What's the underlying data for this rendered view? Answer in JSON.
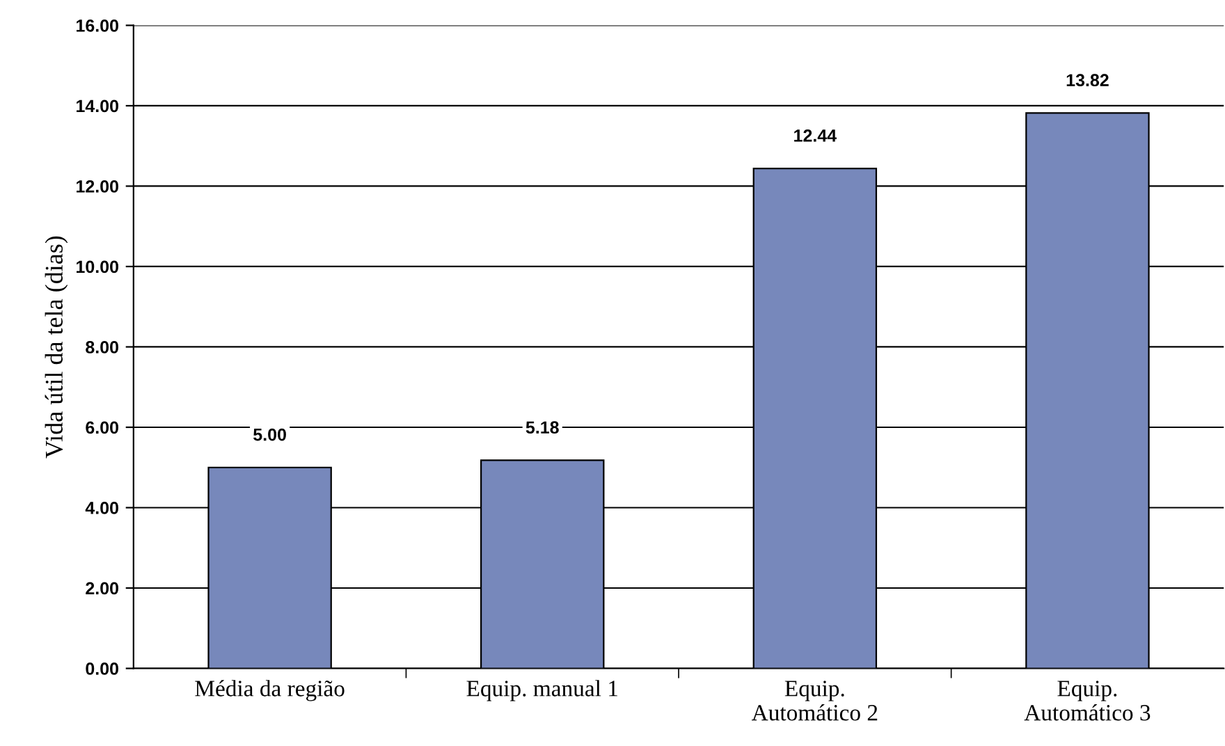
{
  "chart_data": {
    "type": "bar",
    "ylabel": "Vida útil da tela (dias)",
    "categories": [
      "Média da região",
      "Equip. manual 1",
      "Equip.\nAutomático 2",
      "Equip.\nAutomático 3"
    ],
    "values": [
      5.0,
      5.18,
      12.44,
      13.82
    ],
    "value_labels": [
      "5.00",
      "5.18",
      "12.44",
      "13.82"
    ],
    "color": "#7788bb",
    "ylim": [
      0,
      16
    ],
    "yticks": [
      {
        "value": 0,
        "label": "0.00"
      },
      {
        "value": 2,
        "label": "2.00"
      },
      {
        "value": 4,
        "label": "4.00"
      },
      {
        "value": 6,
        "label": "6.00"
      },
      {
        "value": 8,
        "label": "8.00"
      },
      {
        "value": 10,
        "label": "10.00"
      },
      {
        "value": 12,
        "label": "12.00"
      },
      {
        "value": 14,
        "label": "14.00"
      },
      {
        "value": 16,
        "label": "16.00"
      }
    ],
    "grid": "y",
    "legend": false
  }
}
